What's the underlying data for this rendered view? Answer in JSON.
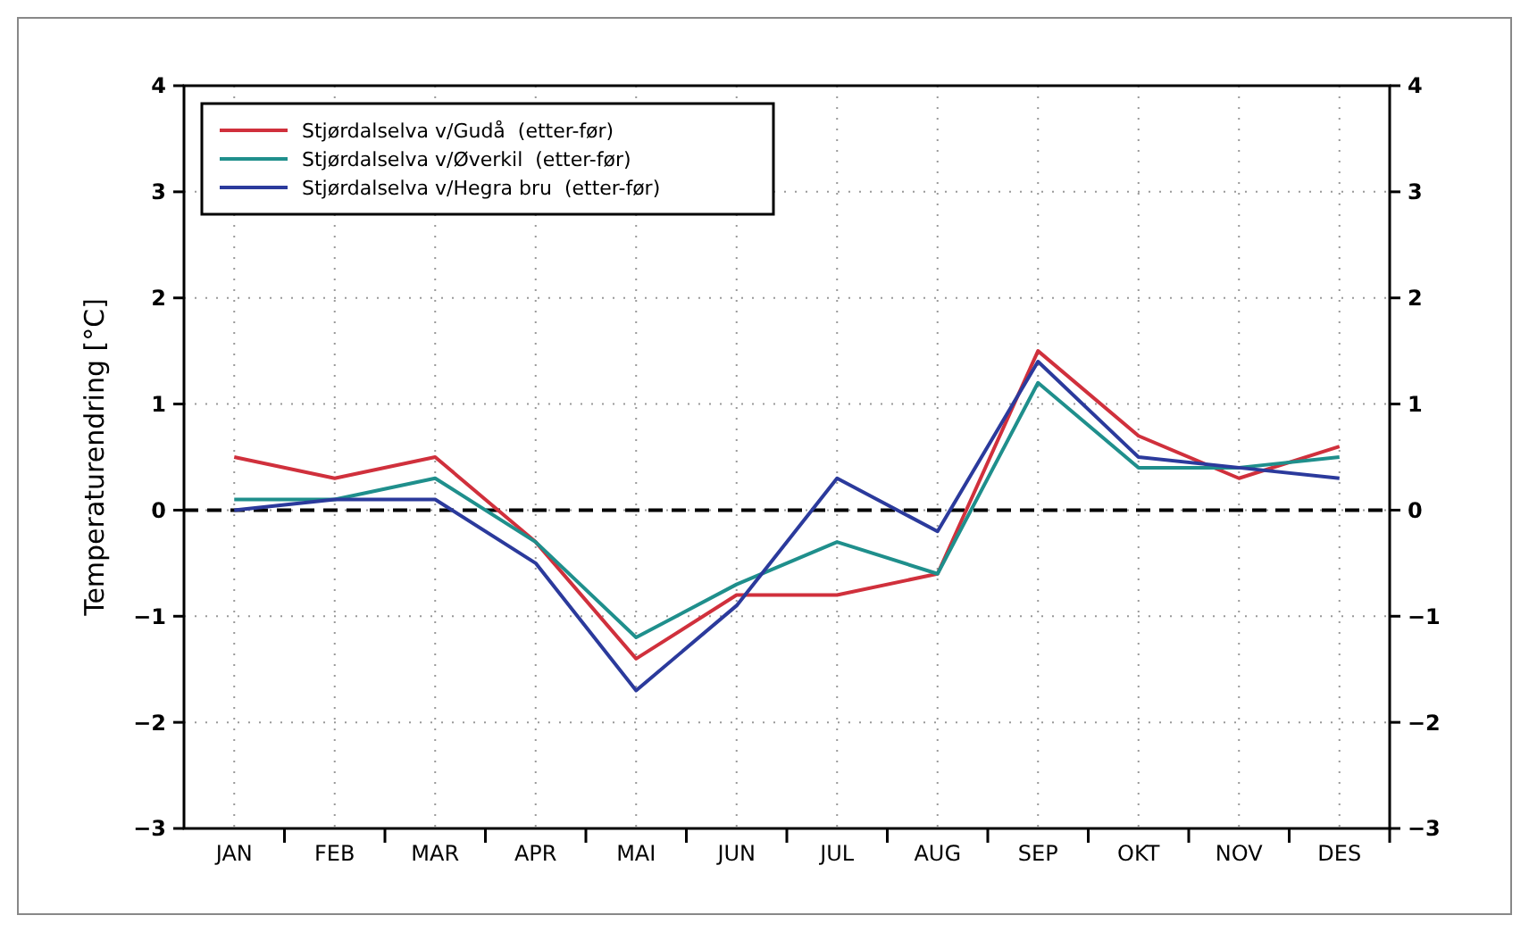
{
  "chart_data": {
    "type": "line",
    "ylabel": "Temperaturendring [°C]",
    "categories": [
      "JAN",
      "FEB",
      "MAR",
      "APR",
      "MAI",
      "JUN",
      "JUL",
      "AUG",
      "SEP",
      "OKT",
      "NOV",
      "DES"
    ],
    "series": [
      {
        "name": "Stjørdalselva v/Gudå  (etter-før)",
        "color": "#d0303c",
        "values": [
          0.5,
          0.3,
          0.5,
          -0.3,
          -1.4,
          -0.8,
          -0.8,
          -0.6,
          1.5,
          0.7,
          0.3,
          0.6
        ]
      },
      {
        "name": "Stjørdalselva v/Øverkil  (etter-før)",
        "color": "#1f8f8c",
        "values": [
          0.1,
          0.1,
          0.3,
          -0.3,
          -1.2,
          -0.7,
          -0.3,
          -0.6,
          1.2,
          0.4,
          0.4,
          0.5
        ]
      },
      {
        "name": "Stjørdalselva v/Hegra bru  (etter-før)",
        "color": "#2b3a9c",
        "values": [
          0.0,
          0.1,
          0.1,
          -0.5,
          -1.7,
          -0.9,
          0.3,
          -0.2,
          1.4,
          0.5,
          0.4,
          0.3
        ]
      }
    ],
    "ylim": [
      -3,
      4
    ],
    "yticks": [
      -3,
      -2,
      -1,
      0,
      1,
      2,
      3,
      4
    ],
    "y2lim": [
      -3,
      4
    ],
    "y2ticks": [
      -3,
      -2,
      -1,
      0,
      1,
      2,
      3,
      4
    ],
    "grid": true,
    "legend": "top left",
    "marker": "none",
    "line_style": "solid",
    "ref_lines": [
      {
        "axis": "y",
        "value": 0,
        "line_style": "dashed",
        "color": "#000000"
      }
    ]
  }
}
